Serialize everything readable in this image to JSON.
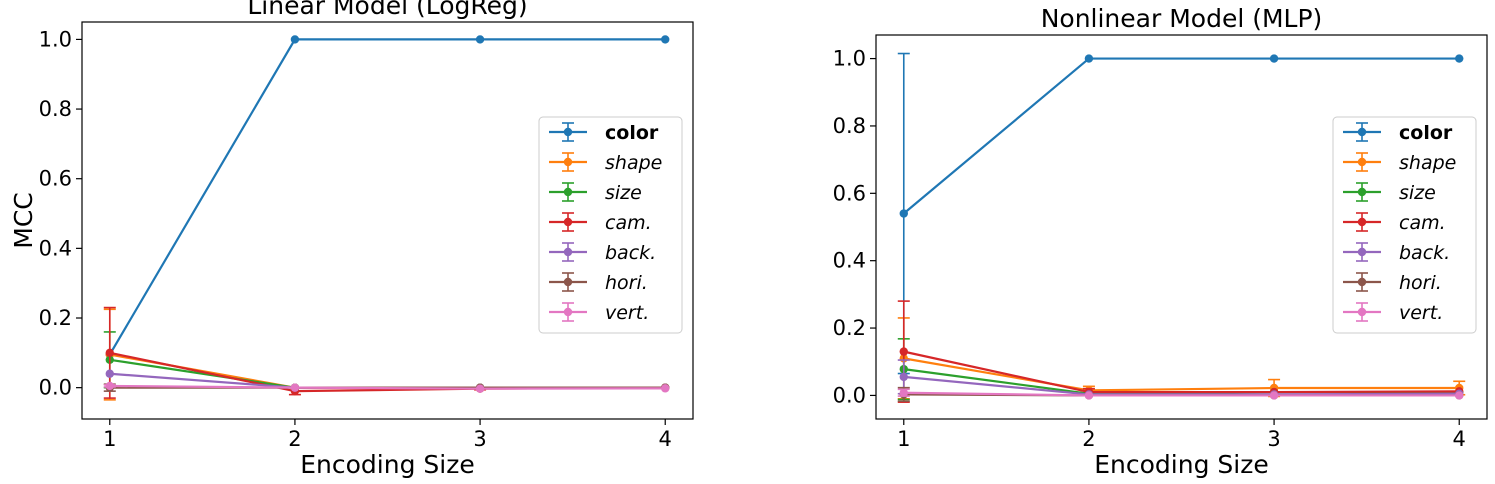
{
  "chart_data": [
    {
      "type": "line",
      "title": "Linear Model (LogReg)",
      "xlabel": "Encoding Size",
      "ylabel": "MCC",
      "x": [
        1,
        2,
        3,
        4
      ],
      "xticks": [
        "1",
        "2",
        "3",
        "4"
      ],
      "yticks": [
        "0.0",
        "0.2",
        "0.4",
        "0.6",
        "0.8",
        "1.0"
      ],
      "xlim": [
        0.85,
        4.15
      ],
      "ylim": [
        -0.09,
        1.05
      ],
      "legend_position": "center-right",
      "series": [
        {
          "name": "color",
          "color": "#1f77b4",
          "style": "bold",
          "values": [
            0.095,
            1.0,
            1.0,
            1.0
          ],
          "errors": [
            0.0,
            0.0,
            0.0,
            0.0
          ]
        },
        {
          "name": "shape",
          "color": "#ff7f0e",
          "style": "italic",
          "values": [
            0.095,
            0.0,
            0.0,
            0.0
          ],
          "errors": [
            0.13,
            0.0,
            0.0,
            0.0
          ]
        },
        {
          "name": "size",
          "color": "#2ca02c",
          "style": "italic",
          "values": [
            0.08,
            0.0,
            0.0,
            0.0
          ],
          "errors": [
            0.08,
            0.0,
            0.0,
            0.0
          ]
        },
        {
          "name": "cam.",
          "color": "#d62728",
          "style": "italic",
          "values": [
            0.1,
            -0.01,
            -0.003,
            0.0
          ],
          "errors": [
            0.13,
            0.01,
            0.003,
            0.0
          ]
        },
        {
          "name": "back.",
          "color": "#9467bd",
          "style": "italic",
          "values": [
            0.04,
            0.0,
            0.0,
            0.0
          ],
          "errors": [
            0.0,
            0.0,
            0.0,
            0.0
          ]
        },
        {
          "name": "hori.",
          "color": "#8c564b",
          "style": "italic",
          "values": [
            0.0,
            0.0,
            0.0,
            0.0
          ],
          "errors": [
            0.01,
            0.0,
            0.0,
            0.0
          ]
        },
        {
          "name": "vert.",
          "color": "#e377c2",
          "style": "italic",
          "values": [
            0.005,
            0.0,
            -0.003,
            -0.002
          ],
          "errors": [
            0.003,
            0.0,
            0.0,
            0.0
          ]
        }
      ]
    },
    {
      "type": "line",
      "title": "Nonlinear Model (MLP)",
      "xlabel": "Encoding Size",
      "ylabel": "",
      "x": [
        1,
        2,
        3,
        4
      ],
      "xticks": [
        "1",
        "2",
        "3",
        "4"
      ],
      "yticks": [
        "0.0",
        "0.2",
        "0.4",
        "0.6",
        "0.8",
        "1.0"
      ],
      "xlim": [
        0.85,
        4.15
      ],
      "ylim": [
        -0.07,
        1.07
      ],
      "legend_position": "center-right",
      "series": [
        {
          "name": "color",
          "color": "#1f77b4",
          "style": "bold",
          "values": [
            0.54,
            1.0,
            1.0,
            1.0
          ],
          "errors": [
            0.475,
            0.0,
            0.0,
            0.0
          ]
        },
        {
          "name": "shape",
          "color": "#ff7f0e",
          "style": "italic",
          "values": [
            0.11,
            0.015,
            0.022,
            0.022
          ],
          "errors": [
            0.12,
            0.012,
            0.025,
            0.02
          ]
        },
        {
          "name": "size",
          "color": "#2ca02c",
          "style": "italic",
          "values": [
            0.078,
            0.005,
            0.01,
            0.01
          ],
          "errors": [
            0.09,
            0.0,
            0.0,
            0.0
          ]
        },
        {
          "name": "cam.",
          "color": "#d62728",
          "style": "italic",
          "values": [
            0.13,
            0.01,
            0.01,
            0.012
          ],
          "errors": [
            0.15,
            0.01,
            0.0,
            0.0
          ]
        },
        {
          "name": "back.",
          "color": "#9467bd",
          "style": "italic",
          "values": [
            0.055,
            0.003,
            0.003,
            0.005
          ],
          "errors": [
            0.05,
            0.0,
            0.0,
            0.0
          ]
        },
        {
          "name": "hori.",
          "color": "#8c564b",
          "style": "italic",
          "values": [
            0.003,
            0.0,
            0.0,
            0.0
          ],
          "errors": [
            0.02,
            0.0,
            0.0,
            0.0
          ]
        },
        {
          "name": "vert.",
          "color": "#e377c2",
          "style": "italic",
          "values": [
            0.008,
            0.0,
            0.0,
            0.0
          ],
          "errors": [
            0.01,
            0.0,
            0.0,
            0.0
          ]
        }
      ]
    }
  ]
}
